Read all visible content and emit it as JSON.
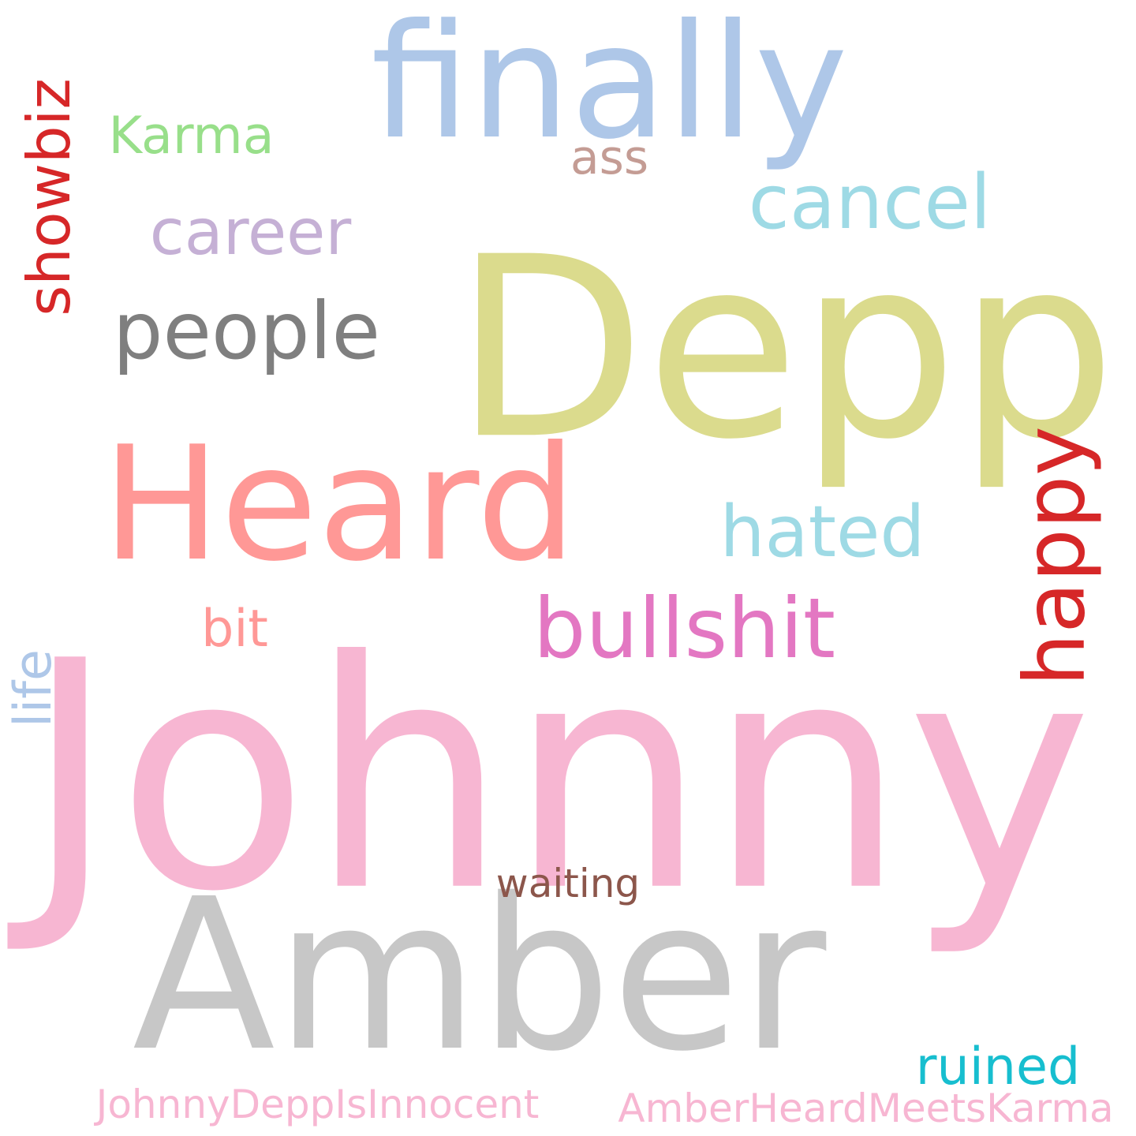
{
  "words": [
    {
      "text": "Johnny",
      "color": "#f7b6d2"
    },
    {
      "text": "Amber",
      "color": "#c7c7c7"
    },
    {
      "text": "Heard",
      "color": "#ff9896"
    },
    {
      "text": "Depp",
      "color": "#dbdb8d"
    },
    {
      "text": "finally",
      "color": "#aec7e8"
    },
    {
      "text": "bullshit",
      "color": "#e377c2"
    },
    {
      "text": "happy",
      "color": "#d62728"
    },
    {
      "text": "showbiz",
      "color": "#d62728"
    },
    {
      "text": "cancel",
      "color": "#9edae5"
    },
    {
      "text": "career",
      "color": "#c5b0d5"
    },
    {
      "text": "people",
      "color": "#7f7f7f"
    },
    {
      "text": "hated",
      "color": "#9edae5"
    },
    {
      "text": "Karma",
      "color": "#98df8a"
    },
    {
      "text": "ruined",
      "color": "#17becf"
    },
    {
      "text": "ass",
      "color": "#c49c94"
    },
    {
      "text": "bit",
      "color": "#ff9896"
    },
    {
      "text": "life",
      "color": "#aec7e8"
    },
    {
      "text": "waiting",
      "color": "#8c564b"
    },
    {
      "text": "JohnnyDeppIsInnocent",
      "color": "#f7b6d2"
    },
    {
      "text": "AmberHeardMeetsKarma",
      "color": "#f7b6d2"
    }
  ]
}
